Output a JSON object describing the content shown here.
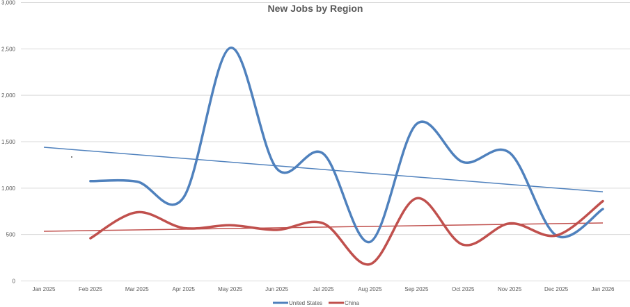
{
  "chart_data": {
    "type": "line",
    "title": "New Jobs by Region",
    "xlabel": "",
    "ylabel": "",
    "categories": [
      "Jan 2025",
      "Feb 2025",
      "Mar 2025",
      "Apr 2025",
      "May 2025",
      "Jun 2025",
      "Jul 2025",
      "Aug 2025",
      "Sep 2025",
      "Oct 2025",
      "Nov 2025",
      "Dec 2025",
      "Jan 2026"
    ],
    "ylim": [
      0,
      3000
    ],
    "yticks": [
      "0",
      "500",
      "1,000",
      "1,500",
      "2,000",
      "2,500",
      "3,000"
    ],
    "ytick_values": [
      0,
      500,
      1000,
      1500,
      2000,
      2500,
      3000
    ],
    "grid": true,
    "legend": "bottom",
    "smooth": true,
    "series": [
      {
        "name": "United States",
        "color": "#4F81BD",
        "values": [
          null,
          1075,
          1070,
          900,
          2510,
          1210,
          1370,
          420,
          1690,
          1280,
          1380,
          490,
          775
        ],
        "trendline": [
          1440,
          960
        ]
      },
      {
        "name": "China",
        "color": "#C0504D",
        "values": [
          null,
          460,
          740,
          570,
          600,
          550,
          620,
          180,
          890,
          390,
          620,
          490,
          860
        ],
        "trendline": [
          535,
          625
        ]
      }
    ]
  }
}
